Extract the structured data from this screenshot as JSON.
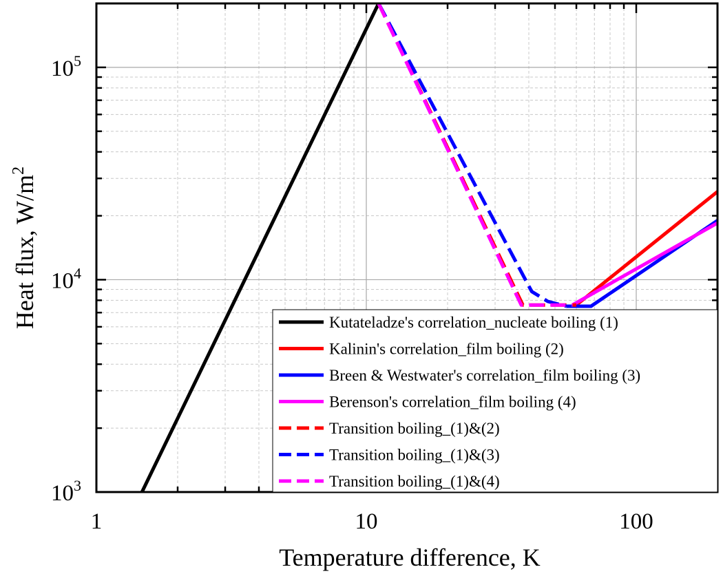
{
  "chart_data": {
    "type": "line",
    "xlabel": "Temperature difference, K",
    "ylabel": "Heat flux, W/m",
    "ylabel_sup": "2",
    "x_scale": "log",
    "y_scale": "log",
    "xlim": [
      1,
      200
    ],
    "ylim": [
      1000,
      200000
    ],
    "grid": true,
    "legend_position": "bottom-right",
    "x_ticks": [
      {
        "value": 1,
        "label": "1"
      },
      {
        "value": 10,
        "label": "10"
      },
      {
        "value": 100,
        "label": "100"
      }
    ],
    "y_ticks": [
      {
        "value": 1000,
        "base": "10",
        "exp": "3"
      },
      {
        "value": 10000,
        "base": "10",
        "exp": "4"
      },
      {
        "value": 100000,
        "base": "10",
        "exp": "5"
      }
    ],
    "series": [
      {
        "name": "Kutateladze's correlation_nucleate boiling (1)",
        "color": "#000000",
        "dash": "solid",
        "x": [
          1.02,
          11.1
        ],
        "y": [
          380,
          200000
        ]
      },
      {
        "name": "Kalinin's correlation_film boiling (2)",
        "color": "#ff0000",
        "dash": "solid",
        "x": [
          60,
          200
        ],
        "y": [
          7600,
          26000
        ]
      },
      {
        "name": "Breen & Westwater's correlation_film boiling (3)",
        "color": "#0000ff",
        "dash": "solid",
        "x": [
          55,
          68,
          200
        ],
        "y": [
          7500,
          7500,
          19000
        ]
      },
      {
        "name": "Berenson's correlation_film boiling (4)",
        "color": "#ff00ff",
        "dash": "solid",
        "x": [
          58,
          200
        ],
        "y": [
          7600,
          18500
        ]
      },
      {
        "name": "Transition boiling_(1)&(2)",
        "color": "#ff0000",
        "dash": "dashed",
        "x": [
          11.1,
          38,
          60
        ],
        "y": [
          200000,
          7600,
          7600
        ]
      },
      {
        "name": "Transition boiling_(1)&(3)",
        "color": "#0000ff",
        "dash": "dashed",
        "x": [
          11.1,
          41,
          47,
          55
        ],
        "y": [
          200000,
          8800,
          7900,
          7500
        ]
      },
      {
        "name": "Transition boiling_(1)&(4)",
        "color": "#ff00ff",
        "dash": "dashed",
        "x": [
          11.1,
          37.5,
          58
        ],
        "y": [
          200000,
          7600,
          7600
        ]
      }
    ]
  }
}
